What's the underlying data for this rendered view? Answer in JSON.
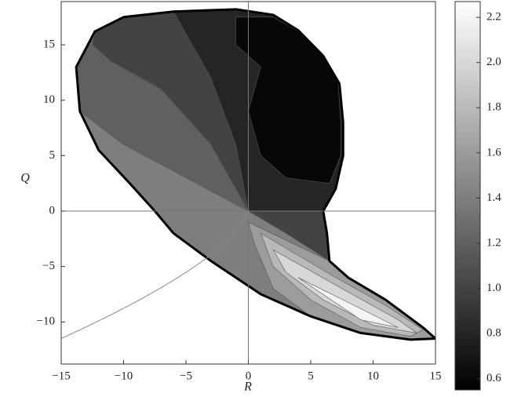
{
  "chart_data": {
    "type": "contour",
    "x_label": "R",
    "y_label": "Q",
    "xlim": [
      -15,
      15
    ],
    "ylim": [
      -13.8,
      18.9
    ],
    "xticks": [
      {
        "value": -15,
        "label": "−15"
      },
      {
        "value": -10,
        "label": "−10"
      },
      {
        "value": -5,
        "label": "−5"
      },
      0,
      5,
      10,
      15
    ],
    "yticks": [
      {
        "value": -10,
        "label": "−10"
      },
      {
        "value": -5,
        "label": "−5"
      },
      0,
      5,
      10,
      15
    ],
    "colorbar": {
      "lim": [
        0.55,
        2.27
      ],
      "ticks": [
        0.6,
        0.8,
        {
          "value": 1,
          "label": "1.0"
        },
        1.2,
        1.4,
        1.6,
        1.8,
        {
          "value": 2,
          "label": "2.0"
        },
        2.2
      ]
    }
  }
}
